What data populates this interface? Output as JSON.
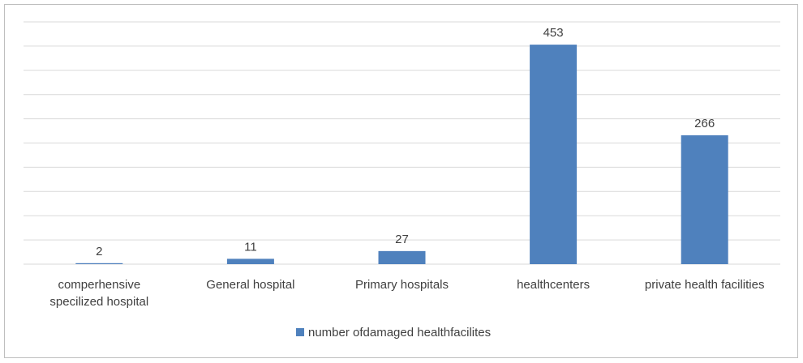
{
  "chart_data": {
    "type": "bar",
    "categories": [
      [
        "comperhensive",
        "specilized hospital"
      ],
      [
        "General hospital"
      ],
      [
        "Primary hospitals"
      ],
      [
        "healthcenters"
      ],
      [
        "private health facilities"
      ]
    ],
    "series": [
      {
        "name": "number ofdamaged healthfacilites",
        "values": [
          2,
          11,
          27,
          453,
          266
        ],
        "color": "#4f81bd"
      }
    ],
    "ylim": [
      0,
      500
    ],
    "gridlines": true,
    "gridline_color": "#d9d9d9",
    "y_axis_labels_shown": false,
    "data_labels": true,
    "legend_position": "bottom"
  }
}
